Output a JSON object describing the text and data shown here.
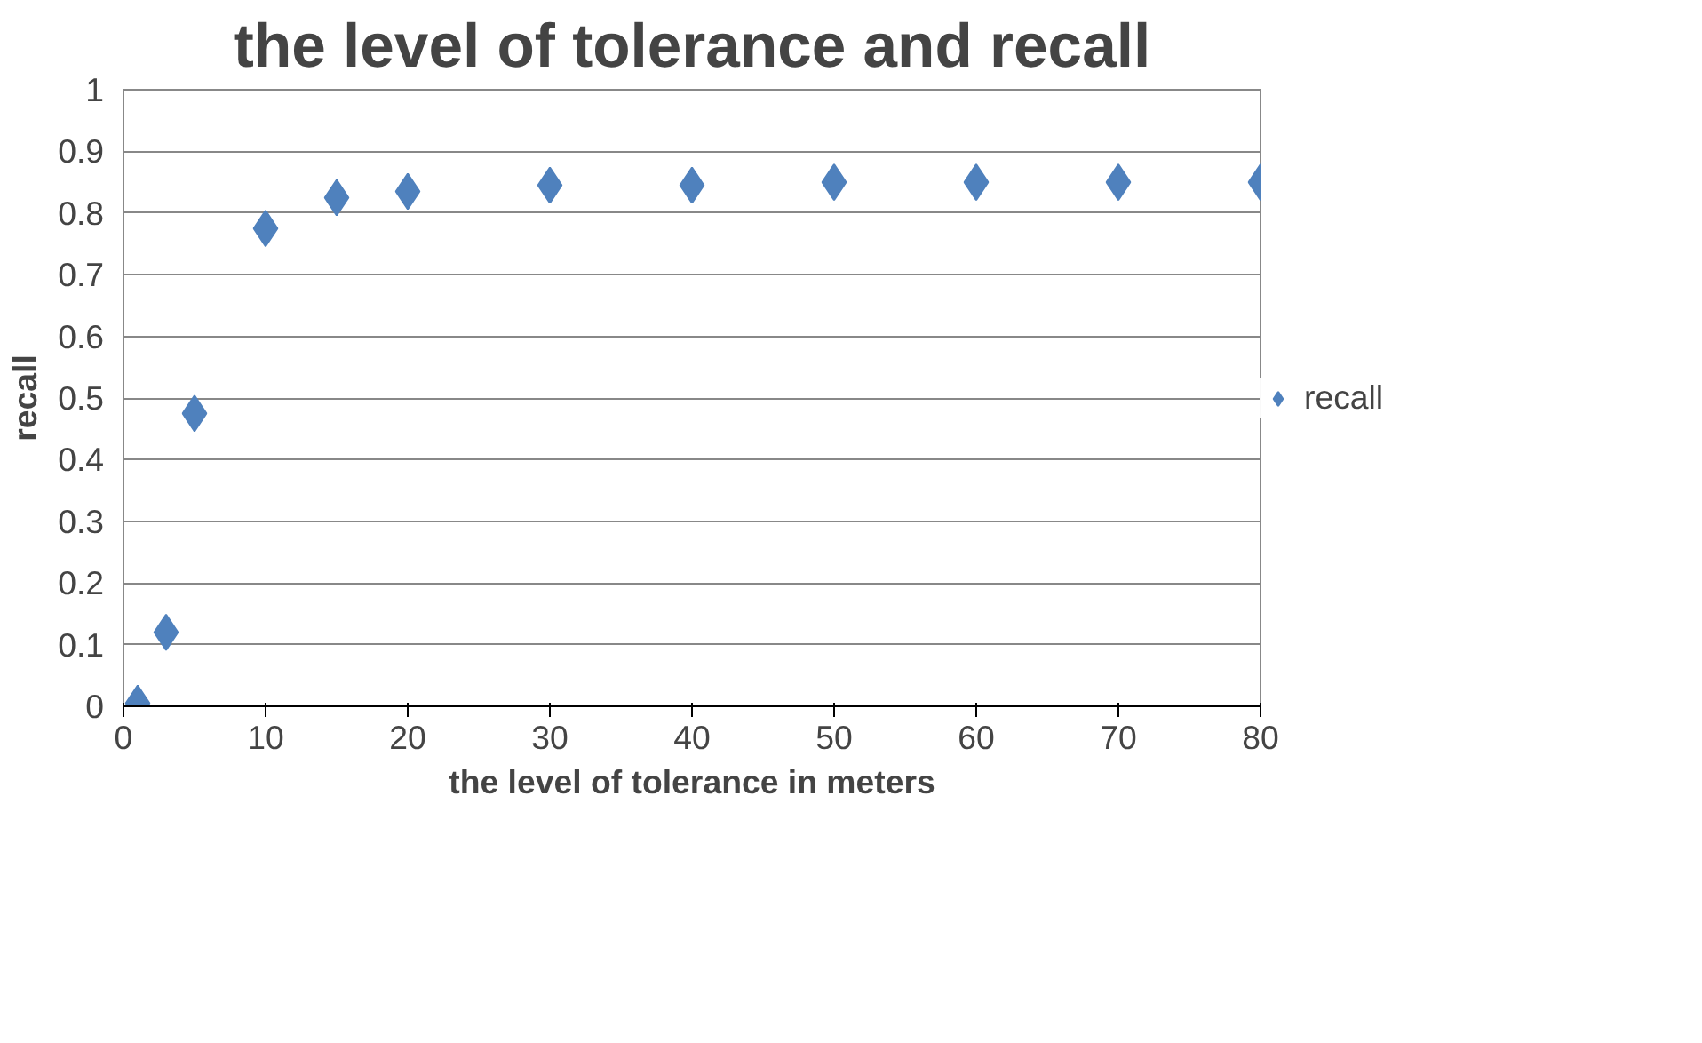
{
  "chart_data": {
    "type": "scatter",
    "title": "the level of tolerance and recall",
    "xlabel": "the level of tolerance in meters",
    "ylabel": "recall",
    "x": [
      1,
      3,
      5,
      10,
      15,
      20,
      30,
      40,
      50,
      60,
      70,
      80
    ],
    "series": [
      {
        "name": "recall",
        "color": "#4f81bd",
        "values": [
          0.005,
          0.12,
          0.475,
          0.775,
          0.825,
          0.835,
          0.845,
          0.845,
          0.85,
          0.85,
          0.85,
          0.85
        ]
      }
    ],
    "xlim": [
      0,
      80
    ],
    "xticks": [
      0,
      10,
      20,
      30,
      40,
      50,
      60,
      70,
      80
    ],
    "ylim": [
      0,
      1
    ],
    "yticks": [
      0,
      0.1,
      0.2,
      0.3,
      0.4,
      0.5,
      0.6,
      0.7,
      0.8,
      0.9,
      1
    ],
    "grid": "y",
    "legend": "right",
    "marker": "diamond"
  }
}
